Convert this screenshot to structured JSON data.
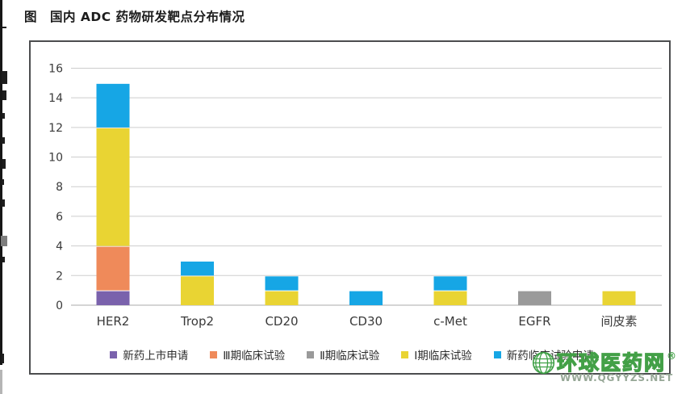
{
  "page": {
    "title": "图　国内 ADC 药物研发靶点分布情况",
    "watermark": {
      "name": "环球医药网",
      "registered_mark": "®",
      "url": "WWW.QGYYZS.NET",
      "brand_color": "#43a047",
      "url_color": "#96a796"
    }
  },
  "chart_data": {
    "type": "bar",
    "stacked": true,
    "title": "国内 ADC 药物研发靶点分布情况",
    "categories": [
      "HER2",
      "Trop2",
      "CD20",
      "CD30",
      "c-Met",
      "EGFR",
      "间皮素"
    ],
    "series": [
      {
        "name": "新药上市申请",
        "color": "#7a62ac",
        "values": [
          1,
          0,
          0,
          0,
          0,
          0,
          0
        ]
      },
      {
        "name": "Ⅲ期临床试验",
        "color": "#ef8a5a",
        "values": [
          3,
          0,
          0,
          0,
          0,
          0,
          0
        ]
      },
      {
        "name": "Ⅱ期临床试验",
        "color": "#9a9a9a",
        "values": [
          0,
          0,
          0,
          0,
          0,
          1,
          0
        ]
      },
      {
        "name": "Ⅰ期临床试验",
        "color": "#e9d433",
        "values": [
          8,
          2,
          1,
          0,
          1,
          0,
          1
        ]
      },
      {
        "name": "新药临床试验申请",
        "color": "#16a6e5",
        "values": [
          3,
          1,
          1,
          1,
          1,
          0,
          0
        ]
      }
    ],
    "xlabel": "",
    "ylabel": "",
    "ylim": [
      0,
      16
    ],
    "yticks": [
      0,
      2,
      4,
      6,
      8,
      10,
      12,
      14,
      16
    ],
    "grid": true,
    "legend_position": "bottom"
  }
}
